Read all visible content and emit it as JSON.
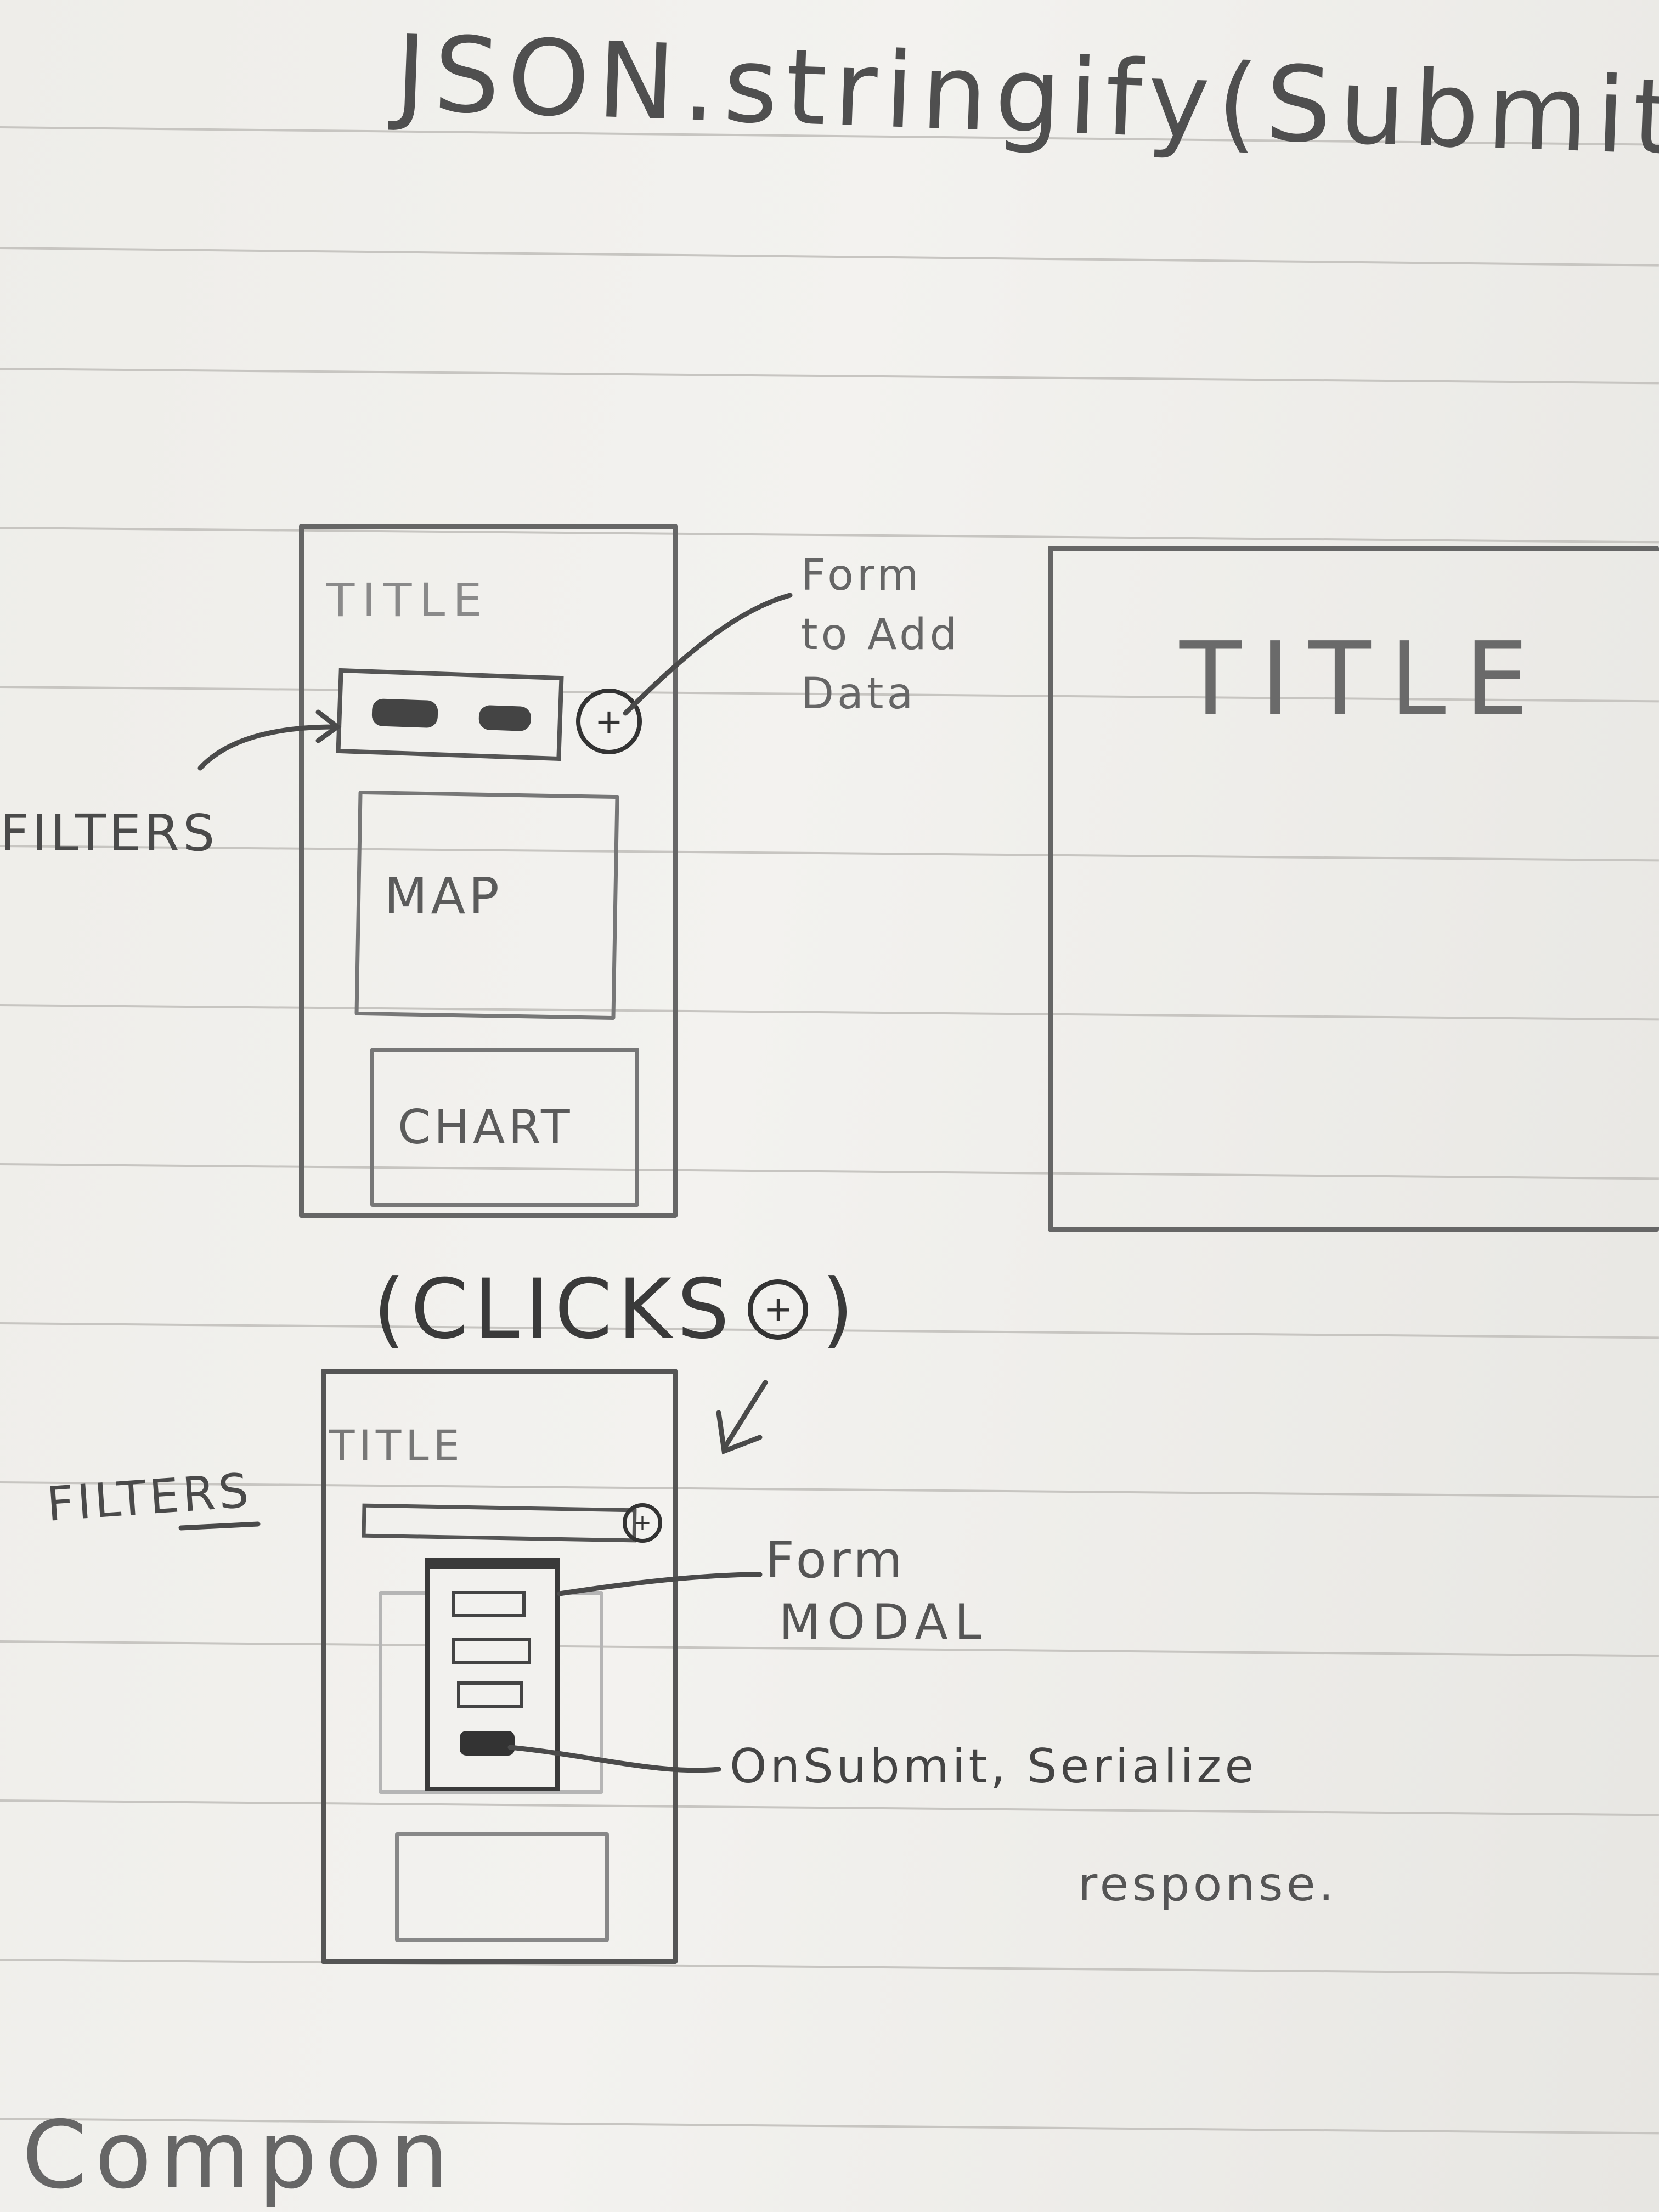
{
  "header": {
    "code": "JSON.stringify(Submitted"
  },
  "mockup_default": {
    "title": "TITLE",
    "add_button": "+",
    "map_label": "MAP",
    "chart_label": "CHART",
    "filters_annotation": "FILTERS",
    "form_annotation": "Form to Add Data"
  },
  "mockup_wide": {
    "title": "TITLE"
  },
  "transition": {
    "clicks_label": "(CLICKS",
    "clicks_icon": "+",
    "clicks_close": ")"
  },
  "mockup_modal": {
    "title": "TITLE",
    "add_button": "+",
    "filters_annotation": "FILTERS",
    "form_modal_annotation_line1": "Form",
    "form_modal_annotation_line2": "MODAL",
    "onsubmit_annotation_line1": "OnSubmit, Serialize",
    "onsubmit_annotation_line2": "response."
  },
  "footer": {
    "partial_text": "Compon"
  },
  "colors": {
    "paper": "#efeeea",
    "pencil": "#5b5b5b",
    "ruled_line": "#c7c5c1"
  }
}
